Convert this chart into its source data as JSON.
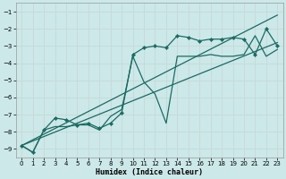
{
  "xlabel": "Humidex (Indice chaleur)",
  "background_color": "#cce8e8",
  "grid_color": "#b8d8d8",
  "line_color": "#1a6b62",
  "xlim": [
    -0.5,
    23.5
  ],
  "ylim": [
    -9.5,
    -0.5
  ],
  "yticks": [
    -9,
    -8,
    -7,
    -6,
    -5,
    -4,
    -3,
    -2,
    -1
  ],
  "xticks": [
    0,
    1,
    2,
    3,
    4,
    5,
    6,
    7,
    8,
    9,
    10,
    11,
    12,
    13,
    14,
    15,
    16,
    17,
    18,
    19,
    20,
    21,
    22,
    23
  ],
  "line1_x": [
    0,
    1,
    2,
    3,
    4,
    5,
    6,
    7,
    8,
    9,
    10,
    11,
    12,
    13,
    14,
    15,
    16,
    17,
    18,
    19,
    20,
    21,
    22,
    23
  ],
  "line1_y": [
    -8.8,
    -9.2,
    -7.9,
    -7.2,
    -7.3,
    -7.6,
    -7.5,
    -7.8,
    -7.5,
    -6.9,
    -3.5,
    -3.1,
    -3.0,
    -3.1,
    -2.4,
    -2.5,
    -2.7,
    -2.6,
    -2.6,
    -2.5,
    -2.6,
    -3.5,
    -2.0,
    -3.0
  ],
  "line2_x": [
    0,
    1,
    2,
    3,
    4,
    5,
    6,
    7,
    8,
    9,
    10,
    11,
    12,
    13,
    14,
    15,
    16,
    17,
    18,
    19,
    20,
    21,
    22,
    23
  ],
  "line2_y": [
    -8.8,
    -9.2,
    -7.9,
    -7.7,
    -7.7,
    -7.6,
    -7.6,
    -7.9,
    -7.1,
    -6.7,
    -3.6,
    -5.1,
    -5.8,
    -7.5,
    -3.6,
    -3.6,
    -3.6,
    -3.5,
    -3.6,
    -3.6,
    -3.5,
    -2.4,
    -3.6,
    -3.2
  ],
  "line3_x": [
    0,
    23
  ],
  "line3_y": [
    -8.8,
    -2.8
  ],
  "line4_x": [
    0,
    23
  ],
  "line4_y": [
    -8.8,
    -1.2
  ]
}
